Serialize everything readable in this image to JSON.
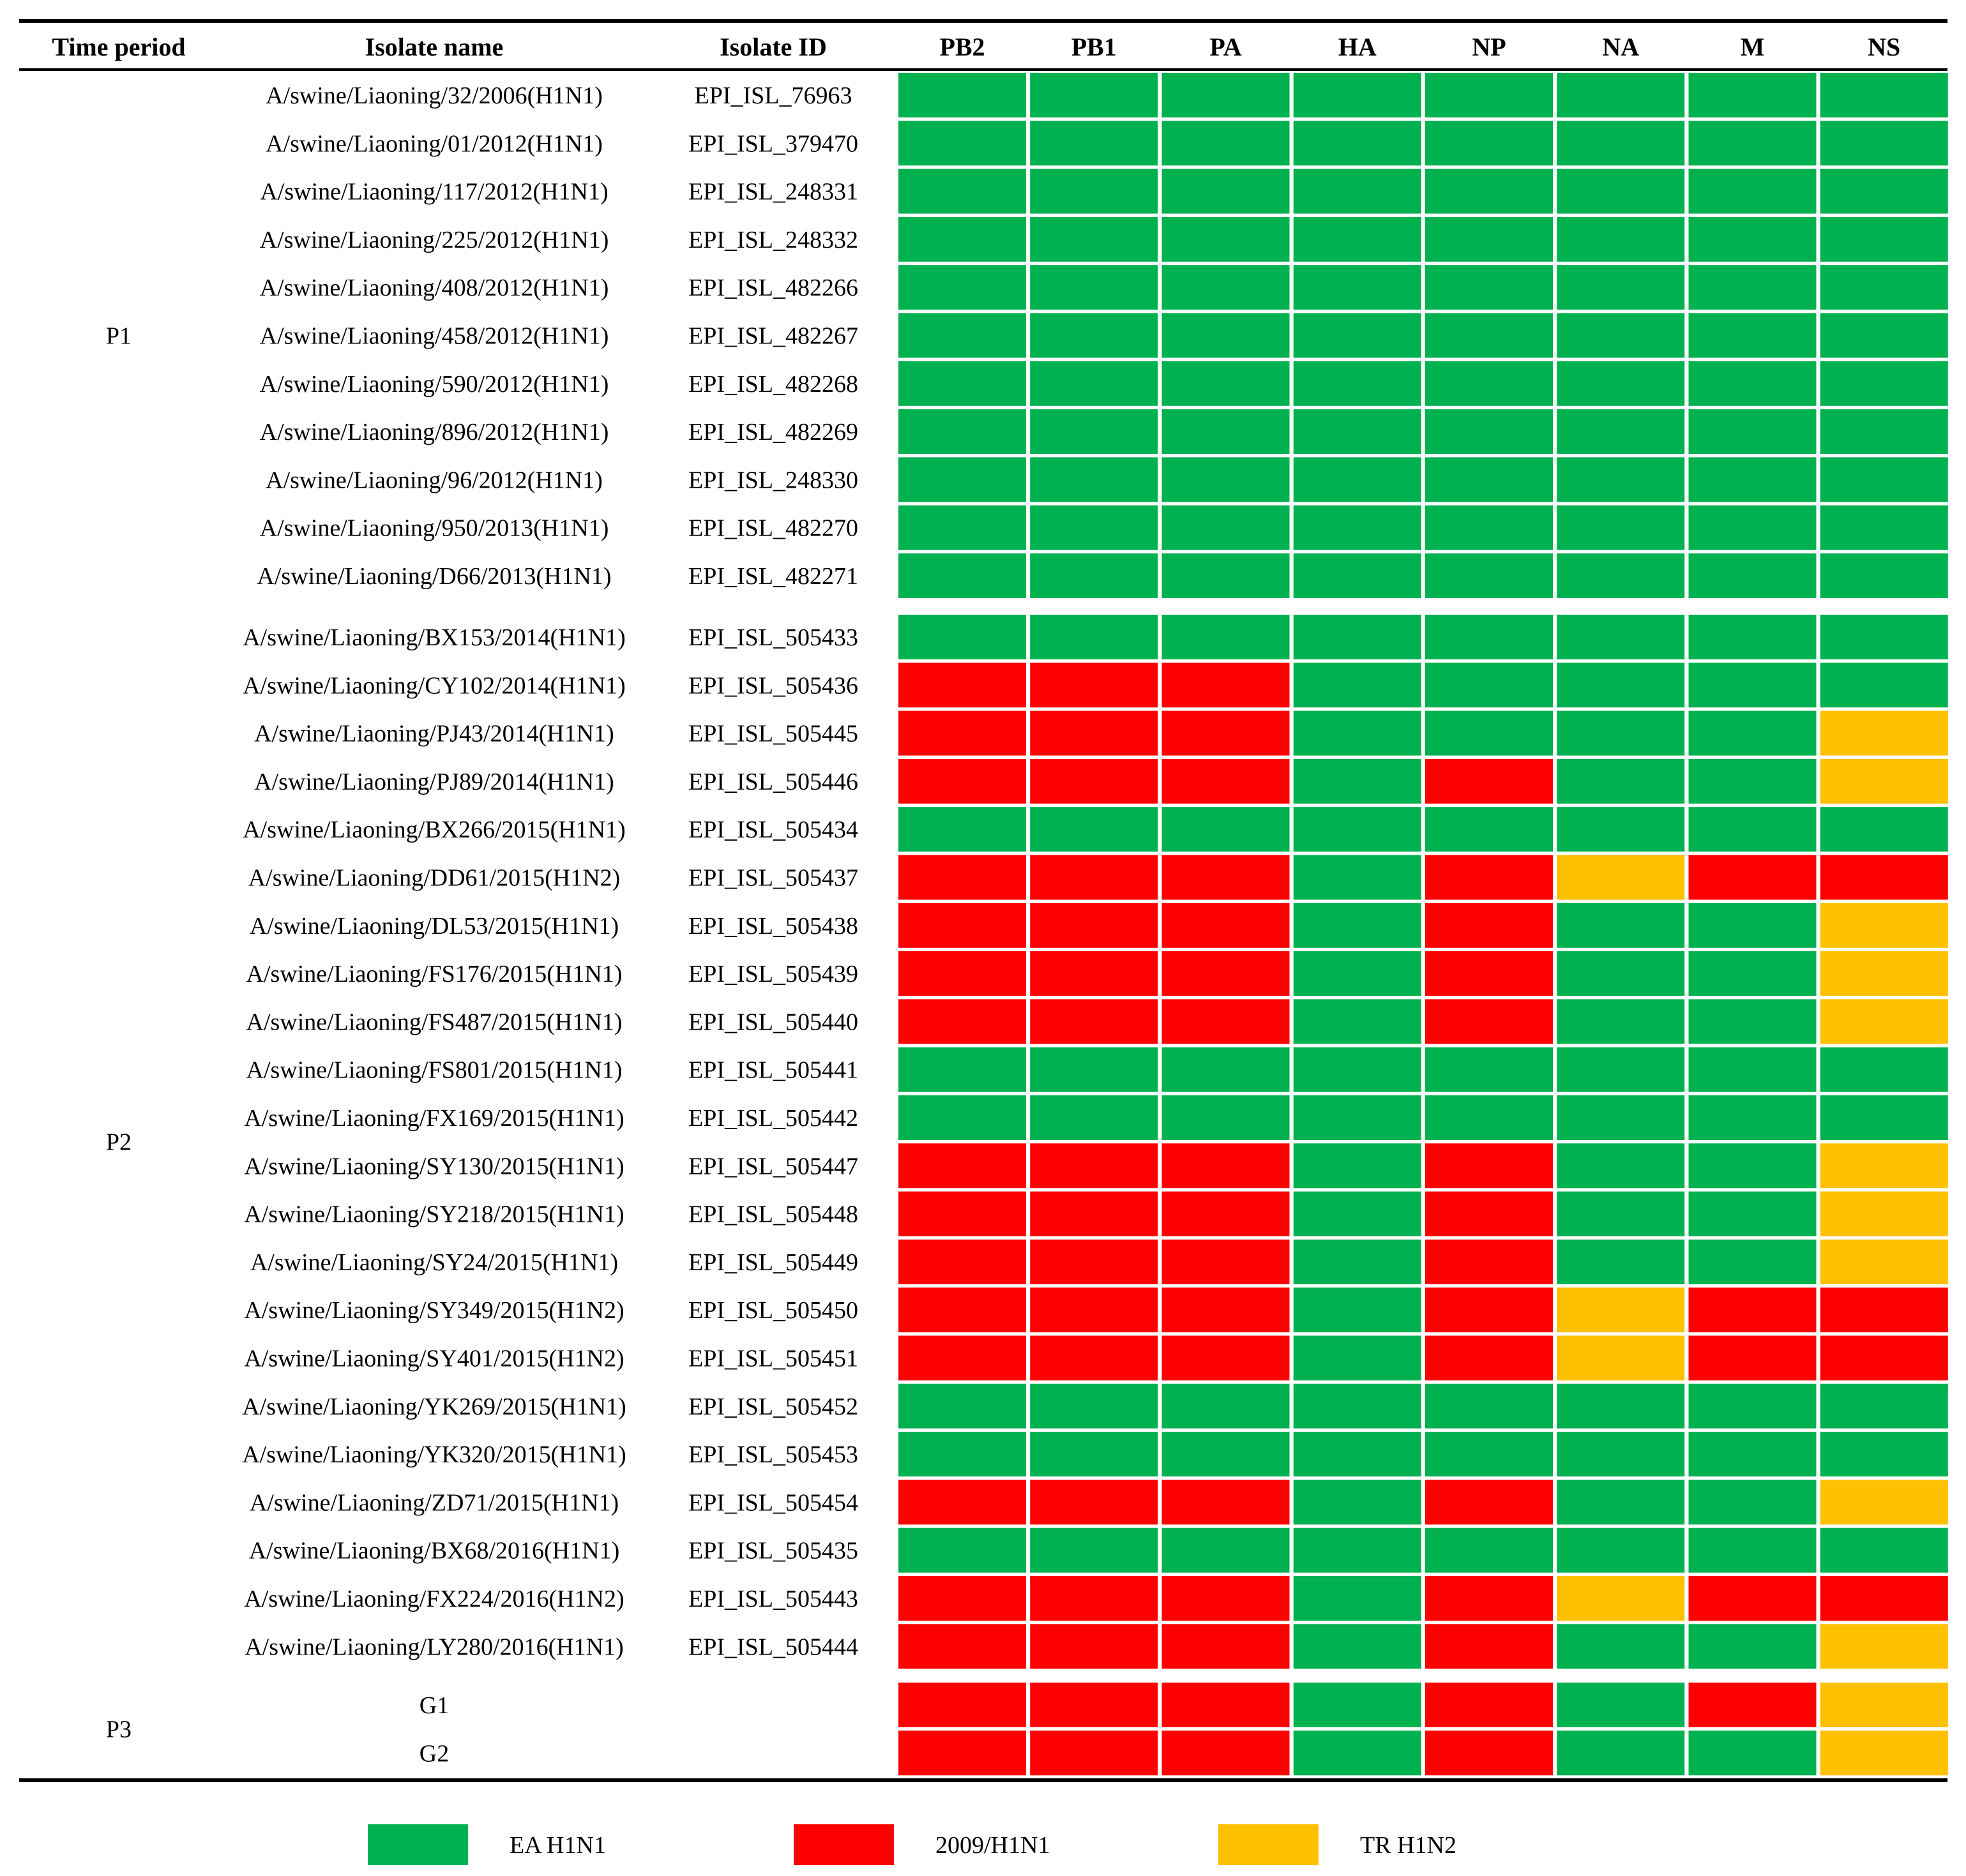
{
  "colors": {
    "EA": "#00b14f",
    "PDM": "#ff0000",
    "TR": "#ffc000",
    "rule": "#000000"
  },
  "chart_data": {
    "type": "heatmap",
    "columns": {
      "time_period": "Time period",
      "isolate_name": "Isolate name",
      "isolate_id": "Isolate ID",
      "segments": [
        "PB2",
        "PB1",
        "PA",
        "HA",
        "NP",
        "NA",
        "M",
        "NS"
      ]
    },
    "legend": [
      {
        "key": "EA",
        "label": "EA H1N1"
      },
      {
        "key": "PDM",
        "label": "2009/H1N1"
      },
      {
        "key": "TR",
        "label": "TR H1N2"
      }
    ],
    "groups": [
      {
        "period": "P1",
        "rows": [
          {
            "name": "A/swine/Liaoning/32/2006(H1N1)",
            "id": "EPI_ISL_76963",
            "cells": [
              "EA",
              "EA",
              "EA",
              "EA",
              "EA",
              "EA",
              "EA",
              "EA"
            ]
          },
          {
            "name": "A/swine/Liaoning/01/2012(H1N1)",
            "id": "EPI_ISL_379470",
            "cells": [
              "EA",
              "EA",
              "EA",
              "EA",
              "EA",
              "EA",
              "EA",
              "EA"
            ]
          },
          {
            "name": "A/swine/Liaoning/117/2012(H1N1)",
            "id": "EPI_ISL_248331",
            "cells": [
              "EA",
              "EA",
              "EA",
              "EA",
              "EA",
              "EA",
              "EA",
              "EA"
            ]
          },
          {
            "name": "A/swine/Liaoning/225/2012(H1N1)",
            "id": "EPI_ISL_248332",
            "cells": [
              "EA",
              "EA",
              "EA",
              "EA",
              "EA",
              "EA",
              "EA",
              "EA"
            ]
          },
          {
            "name": "A/swine/Liaoning/408/2012(H1N1)",
            "id": "EPI_ISL_482266",
            "cells": [
              "EA",
              "EA",
              "EA",
              "EA",
              "EA",
              "EA",
              "EA",
              "EA"
            ]
          },
          {
            "name": "A/swine/Liaoning/458/2012(H1N1)",
            "id": "EPI_ISL_482267",
            "cells": [
              "EA",
              "EA",
              "EA",
              "EA",
              "EA",
              "EA",
              "EA",
              "EA"
            ]
          },
          {
            "name": "A/swine/Liaoning/590/2012(H1N1)",
            "id": "EPI_ISL_482268",
            "cells": [
              "EA",
              "EA",
              "EA",
              "EA",
              "EA",
              "EA",
              "EA",
              "EA"
            ]
          },
          {
            "name": "A/swine/Liaoning/896/2012(H1N1)",
            "id": "EPI_ISL_482269",
            "cells": [
              "EA",
              "EA",
              "EA",
              "EA",
              "EA",
              "EA",
              "EA",
              "EA"
            ]
          },
          {
            "name": "A/swine/Liaoning/96/2012(H1N1)",
            "id": "EPI_ISL_248330",
            "cells": [
              "EA",
              "EA",
              "EA",
              "EA",
              "EA",
              "EA",
              "EA",
              "EA"
            ]
          },
          {
            "name": "A/swine/Liaoning/950/2013(H1N1)",
            "id": "EPI_ISL_482270",
            "cells": [
              "EA",
              "EA",
              "EA",
              "EA",
              "EA",
              "EA",
              "EA",
              "EA"
            ]
          },
          {
            "name": "A/swine/Liaoning/D66/2013(H1N1)",
            "id": "EPI_ISL_482271",
            "cells": [
              "EA",
              "EA",
              "EA",
              "EA",
              "EA",
              "EA",
              "EA",
              "EA"
            ]
          }
        ]
      },
      {
        "period": "P2",
        "rows": [
          {
            "name": "A/swine/Liaoning/BX153/2014(H1N1)",
            "id": "EPI_ISL_505433",
            "cells": [
              "EA",
              "EA",
              "EA",
              "EA",
              "EA",
              "EA",
              "EA",
              "EA"
            ]
          },
          {
            "name": "A/swine/Liaoning/CY102/2014(H1N1)",
            "id": "EPI_ISL_505436",
            "cells": [
              "PDM",
              "PDM",
              "PDM",
              "EA",
              "EA",
              "EA",
              "EA",
              "EA"
            ]
          },
          {
            "name": "A/swine/Liaoning/PJ43/2014(H1N1)",
            "id": "EPI_ISL_505445",
            "cells": [
              "PDM",
              "PDM",
              "PDM",
              "EA",
              "EA",
              "EA",
              "EA",
              "TR"
            ]
          },
          {
            "name": "A/swine/Liaoning/PJ89/2014(H1N1)",
            "id": "EPI_ISL_505446",
            "cells": [
              "PDM",
              "PDM",
              "PDM",
              "EA",
              "PDM",
              "EA",
              "EA",
              "TR"
            ]
          },
          {
            "name": "A/swine/Liaoning/BX266/2015(H1N1)",
            "id": "EPI_ISL_505434",
            "cells": [
              "EA",
              "EA",
              "EA",
              "EA",
              "EA",
              "EA",
              "EA",
              "EA"
            ]
          },
          {
            "name": "A/swine/Liaoning/DD61/2015(H1N2)",
            "id": "EPI_ISL_505437",
            "cells": [
              "PDM",
              "PDM",
              "PDM",
              "EA",
              "PDM",
              "TR",
              "PDM",
              "PDM"
            ]
          },
          {
            "name": "A/swine/Liaoning/DL53/2015(H1N1)",
            "id": "EPI_ISL_505438",
            "cells": [
              "PDM",
              "PDM",
              "PDM",
              "EA",
              "PDM",
              "EA",
              "EA",
              "TR"
            ]
          },
          {
            "name": "A/swine/Liaoning/FS176/2015(H1N1)",
            "id": "EPI_ISL_505439",
            "cells": [
              "PDM",
              "PDM",
              "PDM",
              "EA",
              "PDM",
              "EA",
              "EA",
              "TR"
            ]
          },
          {
            "name": "A/swine/Liaoning/FS487/2015(H1N1)",
            "id": "EPI_ISL_505440",
            "cells": [
              "PDM",
              "PDM",
              "PDM",
              "EA",
              "PDM",
              "EA",
              "EA",
              "TR"
            ]
          },
          {
            "name": "A/swine/Liaoning/FS801/2015(H1N1)",
            "id": "EPI_ISL_505441",
            "cells": [
              "EA",
              "EA",
              "EA",
              "EA",
              "EA",
              "EA",
              "EA",
              "EA"
            ]
          },
          {
            "name": "A/swine/Liaoning/FX169/2015(H1N1)",
            "id": "EPI_ISL_505442",
            "cells": [
              "EA",
              "EA",
              "EA",
              "EA",
              "EA",
              "EA",
              "EA",
              "EA"
            ]
          },
          {
            "name": "A/swine/Liaoning/SY130/2015(H1N1)",
            "id": "EPI_ISL_505447",
            "cells": [
              "PDM",
              "PDM",
              "PDM",
              "EA",
              "PDM",
              "EA",
              "EA",
              "TR"
            ]
          },
          {
            "name": "A/swine/Liaoning/SY218/2015(H1N1)",
            "id": "EPI_ISL_505448",
            "cells": [
              "PDM",
              "PDM",
              "PDM",
              "EA",
              "PDM",
              "EA",
              "EA",
              "TR"
            ]
          },
          {
            "name": "A/swine/Liaoning/SY24/2015(H1N1)",
            "id": "EPI_ISL_505449",
            "cells": [
              "PDM",
              "PDM",
              "PDM",
              "EA",
              "PDM",
              "EA",
              "EA",
              "TR"
            ]
          },
          {
            "name": "A/swine/Liaoning/SY349/2015(H1N2)",
            "id": "EPI_ISL_505450",
            "cells": [
              "PDM",
              "PDM",
              "PDM",
              "EA",
              "PDM",
              "TR",
              "PDM",
              "PDM"
            ]
          },
          {
            "name": "A/swine/Liaoning/SY401/2015(H1N2)",
            "id": "EPI_ISL_505451",
            "cells": [
              "PDM",
              "PDM",
              "PDM",
              "EA",
              "PDM",
              "TR",
              "PDM",
              "PDM"
            ]
          },
          {
            "name": "A/swine/Liaoning/YK269/2015(H1N1)",
            "id": "EPI_ISL_505452",
            "cells": [
              "EA",
              "EA",
              "EA",
              "EA",
              "EA",
              "EA",
              "EA",
              "EA"
            ]
          },
          {
            "name": "A/swine/Liaoning/YK320/2015(H1N1)",
            "id": "EPI_ISL_505453",
            "cells": [
              "EA",
              "EA",
              "EA",
              "EA",
              "EA",
              "EA",
              "EA",
              "EA"
            ]
          },
          {
            "name": "A/swine/Liaoning/ZD71/2015(H1N1)",
            "id": "EPI_ISL_505454",
            "cells": [
              "PDM",
              "PDM",
              "PDM",
              "EA",
              "PDM",
              "EA",
              "EA",
              "TR"
            ]
          },
          {
            "name": "A/swine/Liaoning/BX68/2016(H1N1)",
            "id": "EPI_ISL_505435",
            "cells": [
              "EA",
              "EA",
              "EA",
              "EA",
              "EA",
              "EA",
              "EA",
              "EA"
            ]
          },
          {
            "name": "A/swine/Liaoning/FX224/2016(H1N2)",
            "id": "EPI_ISL_505443",
            "cells": [
              "PDM",
              "PDM",
              "PDM",
              "EA",
              "PDM",
              "TR",
              "PDM",
              "PDM"
            ]
          },
          {
            "name": "A/swine/Liaoning/LY280/2016(H1N1)",
            "id": "EPI_ISL_505444",
            "cells": [
              "PDM",
              "PDM",
              "PDM",
              "EA",
              "PDM",
              "EA",
              "EA",
              "TR"
            ]
          }
        ]
      },
      {
        "period": "P3",
        "rows": [
          {
            "name": "G1",
            "id": "",
            "cells": [
              "PDM",
              "PDM",
              "PDM",
              "EA",
              "PDM",
              "EA",
              "PDM",
              "TR"
            ]
          },
          {
            "name": "G2",
            "id": "",
            "cells": [
              "PDM",
              "PDM",
              "PDM",
              "EA",
              "PDM",
              "EA",
              "EA",
              "TR"
            ]
          }
        ]
      }
    ]
  }
}
